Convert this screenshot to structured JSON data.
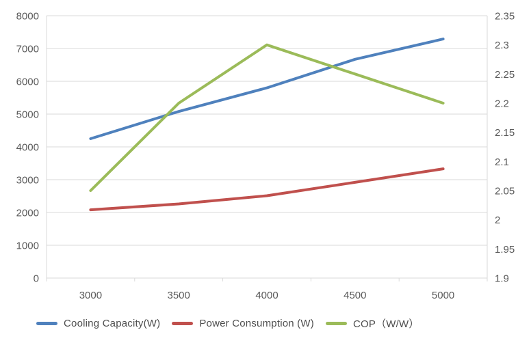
{
  "chart_data": {
    "type": "line",
    "title": "",
    "xlabel": "",
    "ylabel_left": "",
    "ylabel_right": "",
    "x_labels": [
      "3000",
      "3500",
      "4000",
      "4500",
      "5000"
    ],
    "series": [
      {
        "name": "Cooling Capacity(W)",
        "axis": "left",
        "color": "#4F81BD",
        "values": [
          4250,
          5080,
          5800,
          6670,
          7290
        ]
      },
      {
        "name": "Power Consumption (W)",
        "axis": "left",
        "color": "#C0504D",
        "values": [
          2080,
          2260,
          2510,
          2920,
          3330
        ]
      },
      {
        "name": "COP（W/W）",
        "axis": "right",
        "color": "#9BBB59",
        "values": [
          2.05,
          2.2,
          2.3,
          2.25,
          2.2
        ]
      }
    ],
    "left_axis": {
      "min": 0,
      "max": 8000,
      "step": 1000,
      "tick_labels": [
        "0",
        "1000",
        "2000",
        "3000",
        "4000",
        "5000",
        "6000",
        "7000",
        "8000"
      ]
    },
    "right_axis": {
      "min": 1.9,
      "max": 2.35,
      "step": 0.05,
      "tick_labels": [
        "1.9",
        "1.95",
        "2",
        "2.05",
        "2.1",
        "2.15",
        "2.2",
        "2.25",
        "2.3",
        "2.35"
      ]
    },
    "grid": true,
    "legend_position": "bottom",
    "styles": {
      "grid_color": "#D9D9D9",
      "axis_label_color": "#595959",
      "legend_text_color": "#4d4d4d",
      "background": "#FFFFFF",
      "line_width": 4,
      "tick_font_size": 15,
      "x_tick_font_size": 15
    }
  }
}
